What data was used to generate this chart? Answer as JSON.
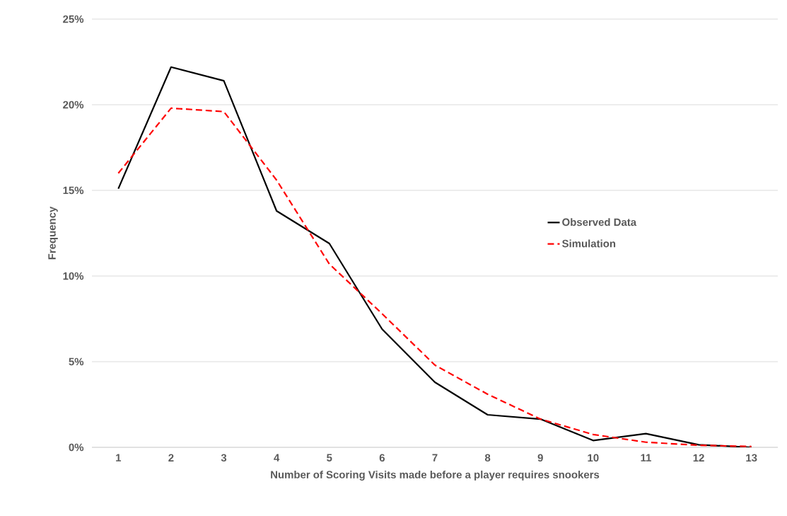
{
  "chart_data": {
    "type": "line",
    "xlabel": "Number of Scoring Visits made before a player requires snookers",
    "ylabel": "Frequency",
    "categories": [
      "1",
      "2",
      "3",
      "4",
      "5",
      "6",
      "7",
      "8",
      "9",
      "10",
      "11",
      "12",
      "13"
    ],
    "series": [
      {
        "name": "Observed Data",
        "color": "#000000",
        "line_style": "solid",
        "values": [
          15.1,
          22.2,
          21.4,
          13.8,
          11.9,
          6.9,
          3.8,
          1.9,
          1.65,
          0.4,
          0.8,
          0.15,
          0.0
        ]
      },
      {
        "name": "Simulation",
        "color": "#ff0000",
        "line_style": "dashed",
        "values": [
          16.0,
          19.8,
          19.6,
          15.6,
          10.7,
          7.8,
          4.8,
          3.1,
          1.65,
          0.75,
          0.3,
          0.12,
          0.05
        ]
      }
    ],
    "ylim": [
      0,
      25
    ],
    "yticks": [
      {
        "value": 0,
        "label": "0%"
      },
      {
        "value": 5,
        "label": "5%"
      },
      {
        "value": 10,
        "label": "10%"
      },
      {
        "value": 15,
        "label": "15%"
      },
      {
        "value": 20,
        "label": "20%"
      },
      {
        "value": 25,
        "label": "25%"
      }
    ],
    "grid": "y",
    "legend": "right",
    "marker": "none"
  }
}
